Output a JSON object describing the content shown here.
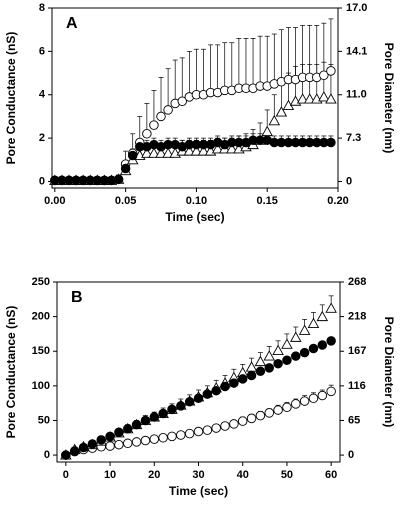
{
  "chart_data": [
    {
      "type": "scatter",
      "panel_label": "A",
      "xlabel": "Time (sec)",
      "ylabel": "Pore Conductance (nS)",
      "y2label": "Pore Diameter (nm)",
      "xlim": [
        -0.002,
        0.2
      ],
      "xticks": [
        {
          "value": 0,
          "label": "0.00"
        },
        0.05,
        {
          "value": 0.1,
          "label": "0.10"
        },
        0.15,
        {
          "value": 0.2,
          "label": "0.20"
        }
      ],
      "ylim": [
        -0.3,
        8
      ],
      "yticks": [
        0,
        2,
        4,
        6,
        8
      ],
      "y2ticks": [
        0,
        7.3,
        {
          "value": 11,
          "label": "11.0"
        },
        14.1,
        {
          "value": 17,
          "label": "17.0"
        }
      ],
      "x": [
        0,
        0.005,
        0.01,
        0.015,
        0.02,
        0.025,
        0.03,
        0.035,
        0.04,
        0.045,
        0.05,
        0.055,
        0.06,
        0.065,
        0.07,
        0.075,
        0.08,
        0.085,
        0.09,
        0.095,
        0.1,
        0.105,
        0.11,
        0.115,
        0.12,
        0.125,
        0.13,
        0.135,
        0.14,
        0.145,
        0.15,
        0.155,
        0.16,
        0.165,
        0.17,
        0.175,
        0.18,
        0.185,
        0.19,
        0.195
      ],
      "series": [
        {
          "color": "#000000",
          "marker": "open-circle",
          "values": [
            0.05,
            0.05,
            0.05,
            0.05,
            0.05,
            0.05,
            0.05,
            0.05,
            0.05,
            0.1,
            0.8,
            1.3,
            1.8,
            2.2,
            2.6,
            3.0,
            3.3,
            3.6,
            3.7,
            3.9,
            4.0,
            4.0,
            4.1,
            4.1,
            4.2,
            4.2,
            4.3,
            4.3,
            4.3,
            4.4,
            4.4,
            4.5,
            4.6,
            4.7,
            4.7,
            4.8,
            4.8,
            4.8,
            4.9,
            5.1
          ],
          "error": [
            0.1,
            0.1,
            0.1,
            0.1,
            0.1,
            0.1,
            0.1,
            0.1,
            0.1,
            0.2,
            0.6,
            0.9,
            1.2,
            1.4,
            1.6,
            1.8,
            1.9,
            2.0,
            2.0,
            2.1,
            2.1,
            2.1,
            2.2,
            2.2,
            2.2,
            2.2,
            2.3,
            2.3,
            2.3,
            2.3,
            2.3,
            2.3,
            2.4,
            2.4,
            2.4,
            2.4,
            2.4,
            2.4,
            2.4,
            2.4
          ]
        },
        {
          "color": "#000000",
          "marker": "open-triangle",
          "values": [
            0.05,
            0.05,
            0.05,
            0.05,
            0.05,
            0.05,
            0.05,
            0.05,
            0.05,
            0.1,
            0.5,
            1.0,
            1.2,
            1.3,
            1.3,
            1.3,
            1.3,
            1.3,
            1.4,
            1.4,
            1.4,
            1.4,
            1.4,
            1.5,
            1.5,
            1.5,
            1.5,
            1.6,
            1.7,
            1.9,
            2.3,
            2.8,
            3.2,
            3.5,
            3.7,
            3.8,
            3.8,
            3.8,
            3.9,
            3.8
          ],
          "error": [
            0.1,
            0.1,
            0.1,
            0.1,
            0.1,
            0.1,
            0.1,
            0.1,
            0.1,
            0.1,
            0.3,
            0.4,
            0.4,
            0.4,
            0.4,
            0.4,
            0.4,
            0.4,
            0.5,
            0.5,
            0.5,
            0.5,
            0.5,
            0.5,
            0.5,
            0.5,
            0.6,
            0.6,
            0.7,
            0.8,
            1.0,
            1.2,
            1.4,
            1.5,
            1.6,
            1.6,
            1.6,
            1.6,
            1.6,
            1.6
          ]
        },
        {
          "color": "#000000",
          "marker": "filled-circle",
          "values": [
            0.05,
            0.05,
            0.05,
            0.05,
            0.05,
            0.05,
            0.05,
            0.05,
            0.05,
            0.1,
            0.6,
            1.2,
            1.6,
            1.6,
            1.7,
            1.6,
            1.7,
            1.7,
            1.6,
            1.7,
            1.7,
            1.7,
            1.7,
            1.8,
            1.7,
            1.8,
            1.8,
            1.8,
            1.9,
            1.9,
            1.9,
            1.8,
            1.8,
            1.8,
            1.8,
            1.8,
            1.8,
            1.8,
            1.8,
            1.8
          ],
          "error": [
            0.05,
            0.05,
            0.05,
            0.05,
            0.05,
            0.05,
            0.05,
            0.05,
            0.05,
            0.1,
            0.2,
            0.3,
            0.3,
            0.3,
            0.3,
            0.3,
            0.3,
            0.3,
            0.3,
            0.3,
            0.3,
            0.3,
            0.3,
            0.3,
            0.3,
            0.3,
            0.3,
            0.3,
            0.3,
            0.3,
            0.3,
            0.3,
            0.3,
            0.3,
            0.3,
            0.3,
            0.3,
            0.3,
            0.3,
            0.3
          ]
        }
      ]
    },
    {
      "type": "scatter",
      "panel_label": "B",
      "xlabel": "Time (sec)",
      "ylabel": "Pore Conductance (nS)",
      "y2label": "Pore Diameter (nm)",
      "xlim": [
        -2,
        62
      ],
      "xticks": [
        0,
        10,
        20,
        30,
        40,
        50,
        60
      ],
      "ylim": [
        -10,
        250
      ],
      "yticks": [
        0,
        50,
        100,
        150,
        200,
        250
      ],
      "y2ticks": [
        0,
        65,
        116,
        167,
        218,
        268
      ],
      "x": [
        0,
        2,
        4,
        6,
        8,
        10,
        12,
        14,
        16,
        18,
        20,
        22,
        24,
        26,
        28,
        30,
        32,
        34,
        36,
        38,
        40,
        42,
        44,
        46,
        48,
        50,
        52,
        54,
        56,
        58,
        60
      ],
      "series": [
        {
          "color": "#000000",
          "marker": "open-circle",
          "values": [
            0,
            5,
            8,
            10,
            12,
            13,
            15,
            17,
            19,
            21,
            23,
            25,
            27,
            29,
            31,
            34,
            36,
            39,
            42,
            45,
            49,
            53,
            57,
            61,
            65,
            69,
            74,
            78,
            82,
            86,
            92
          ],
          "error": [
            2,
            3,
            3,
            3,
            3,
            3,
            3,
            3,
            3,
            4,
            4,
            4,
            4,
            4,
            4,
            5,
            5,
            5,
            5,
            5,
            6,
            6,
            6,
            6,
            7,
            7,
            7,
            8,
            8,
            8,
            9
          ]
        },
        {
          "color": "#000000",
          "marker": "open-triangle",
          "values": [
            0,
            8,
            12,
            15,
            20,
            26,
            32,
            38,
            44,
            50,
            55,
            60,
            66,
            72,
            78,
            84,
            90,
            97,
            104,
            112,
            119,
            127,
            135,
            143,
            151,
            160,
            170,
            180,
            190,
            200,
            212
          ],
          "error": [
            2,
            3,
            3,
            4,
            4,
            5,
            5,
            6,
            6,
            7,
            7,
            8,
            8,
            9,
            9,
            10,
            10,
            11,
            11,
            12,
            12,
            13,
            13,
            14,
            14,
            15,
            15,
            16,
            16,
            17,
            18
          ]
        },
        {
          "color": "#000000",
          "marker": "filled-circle",
          "values": [
            0,
            6,
            11,
            16,
            22,
            27,
            33,
            38,
            44,
            50,
            55,
            60,
            66,
            71,
            77,
            82,
            88,
            93,
            99,
            104,
            110,
            115,
            121,
            126,
            132,
            137,
            143,
            148,
            154,
            159,
            165
          ],
          "error": [
            1,
            1,
            1,
            1,
            1,
            1,
            1,
            1,
            1,
            1,
            1,
            1,
            1,
            1,
            1,
            1,
            1,
            1,
            1,
            1,
            1,
            1,
            1,
            1,
            1,
            1,
            1,
            1,
            1,
            1,
            1
          ]
        }
      ]
    }
  ]
}
